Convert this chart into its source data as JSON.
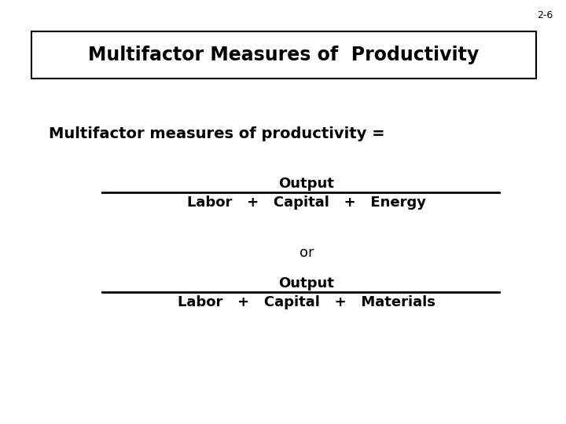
{
  "slide_number": "2-6",
  "title": "Multifactor Measures of  Productivity",
  "subtitle": "Multifactor measures of productivity =",
  "output_label": "Output",
  "fraction1_denominator": "Labor   +   Capital   +   Energy",
  "or_label": "or",
  "fraction2_denominator": "Labor   +   Capital   +   Materials",
  "bg_color": "#ffffff",
  "text_color": "#000000",
  "title_fontsize": 17,
  "subtitle_fontsize": 14,
  "body_fontsize": 13,
  "denom_fontsize": 13,
  "slide_num_fontsize": 9
}
